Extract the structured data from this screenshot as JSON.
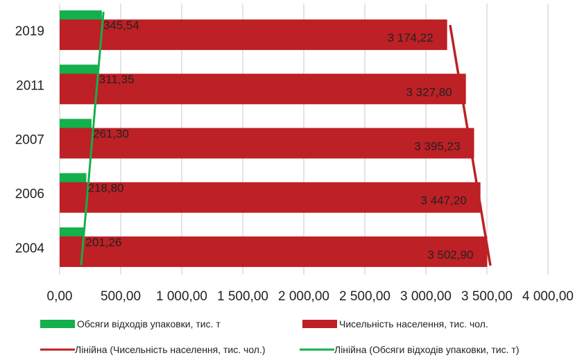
{
  "chart_data": {
    "type": "bar",
    "orientation": "horizontal",
    "categories": [
      "2019",
      "2011",
      "2007",
      "2006",
      "2004"
    ],
    "series": [
      {
        "name": "Обсяги відходів упаковки, тис. т",
        "values": [
          345.54,
          311.35,
          261.3,
          218.8,
          201.26
        ],
        "labels": [
          "345,54",
          "311,35",
          "261,30",
          "218,80",
          "201,26"
        ],
        "color": "#13b04b"
      },
      {
        "name": "Чисельність населення, тис. чол.",
        "values": [
          3174.22,
          3327.8,
          3395.23,
          3447.2,
          3502.9
        ],
        "labels": [
          "3 174,22",
          "3 327,80",
          "3 395,23",
          "3 447,20",
          "3 502,90"
        ],
        "color": "#bd2025"
      }
    ],
    "trendlines": [
      {
        "name": "Лінійна (Чисельність населення, тис. чол.)",
        "type": "linear",
        "series": "Чисельність населення, тис. чол.",
        "color": "#bd2025"
      },
      {
        "name": "Лінійна (Обсяги відходів упаковки, тис. т)",
        "type": "linear",
        "series": "Обсяги відходів упаковки, тис. т",
        "color": "#13b04b"
      }
    ],
    "xlim": [
      0,
      4000
    ],
    "xticks": [
      0,
      500,
      1000,
      1500,
      2000,
      2500,
      3000,
      3500,
      4000
    ],
    "xtick_labels": [
      "0,00",
      "500,00",
      "1 000,00",
      "1 500,00",
      "2 000,00",
      "2 500,00",
      "3 000,00",
      "3 500,00",
      "4 000,00"
    ],
    "grid": true,
    "legend_position": "bottom"
  }
}
